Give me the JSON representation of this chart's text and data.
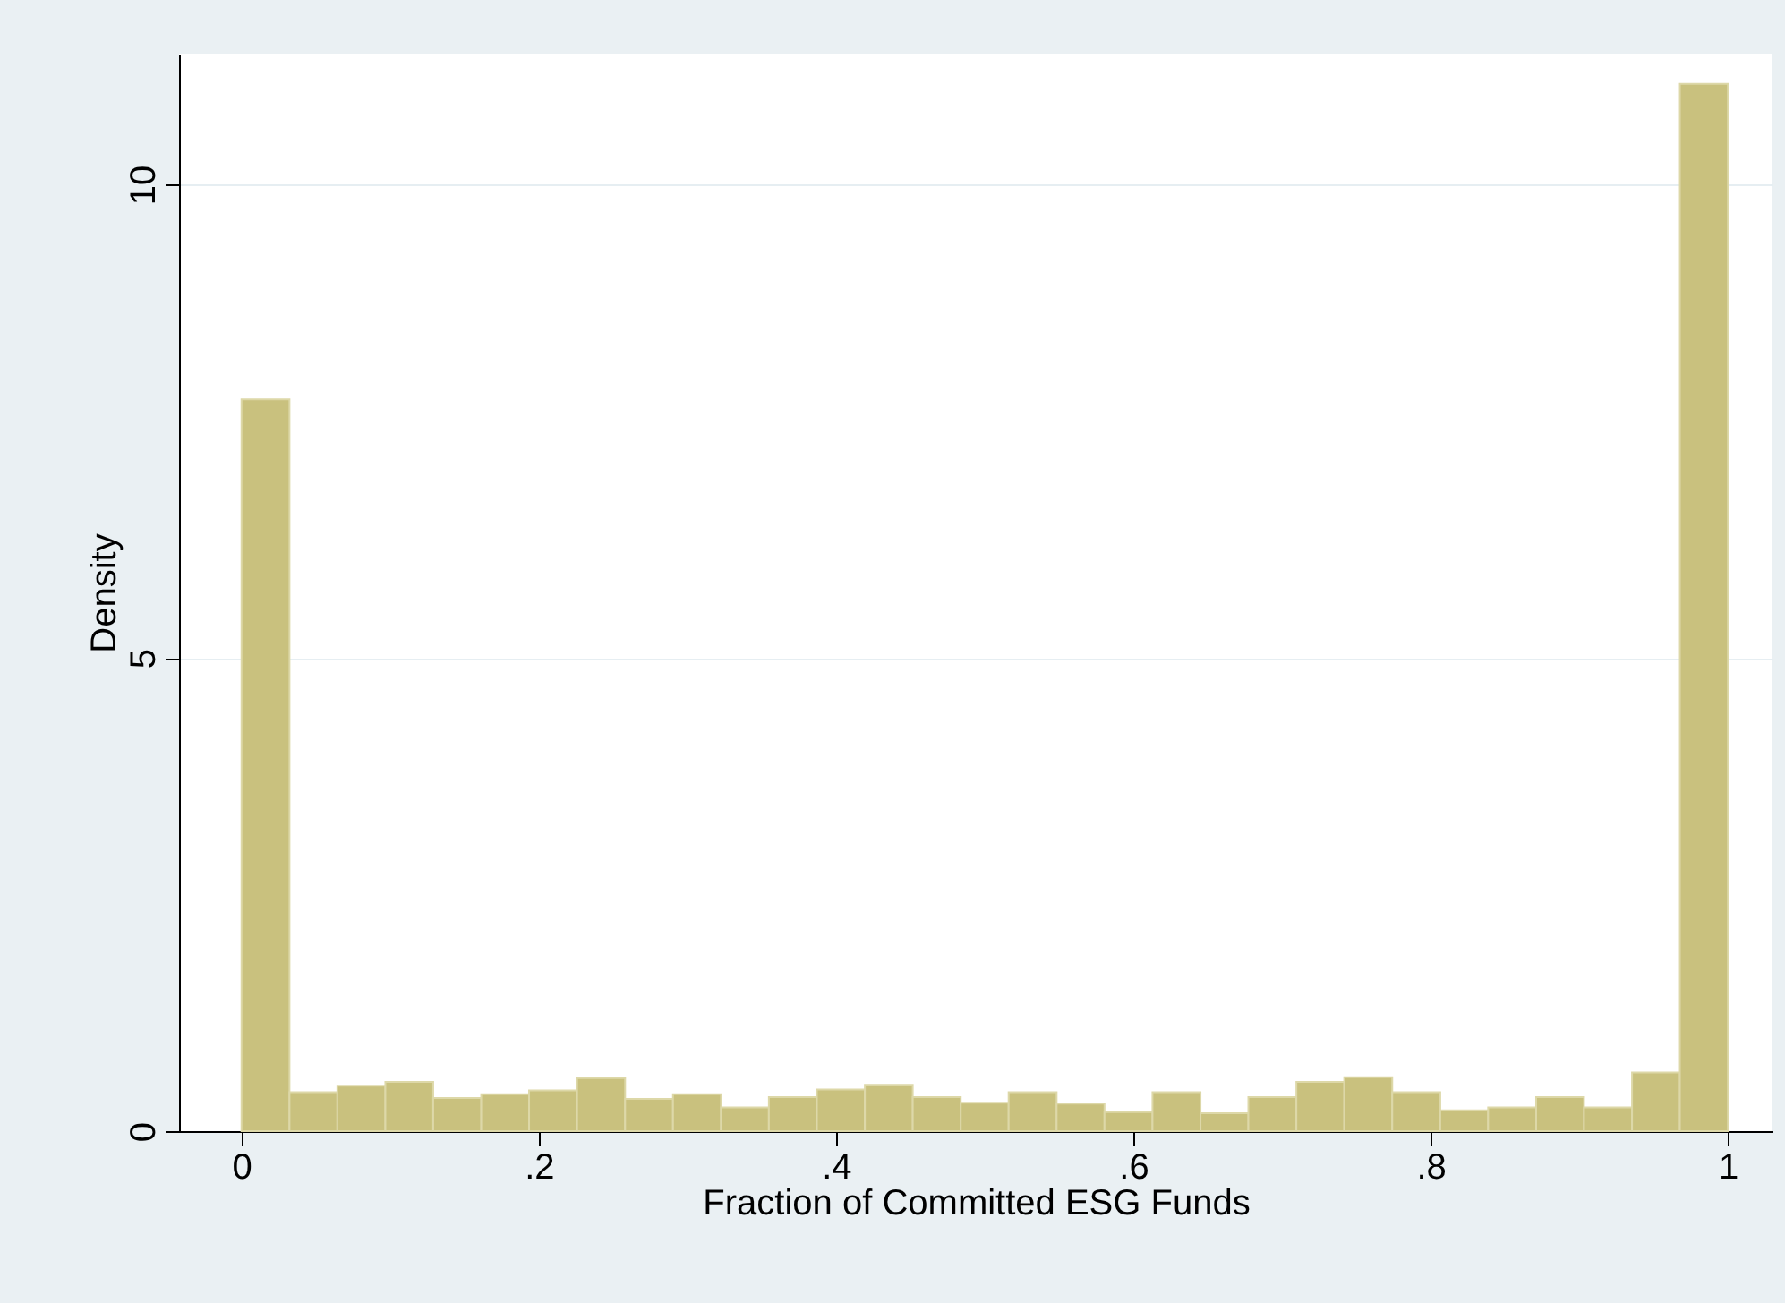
{
  "chart_data": {
    "type": "histogram",
    "xlabel": "Fraction of Committed ESG Funds",
    "ylabel": "Density",
    "bins": [
      0,
      0.0323,
      0.0645,
      0.0968,
      0.129,
      0.1613,
      0.1935,
      0.2258,
      0.2581,
      0.2903,
      0.3226,
      0.3548,
      0.3871,
      0.4194,
      0.4516,
      0.4839,
      0.5161,
      0.5484,
      0.5806,
      0.6129,
      0.6452,
      0.6774,
      0.7097,
      0.7419,
      0.7742,
      0.8065,
      0.8387,
      0.871,
      0.9032,
      0.9355,
      0.9677,
      1
    ],
    "values": [
      7.73,
      0.41,
      0.48,
      0.52,
      0.35,
      0.39,
      0.43,
      0.56,
      0.34,
      0.39,
      0.25,
      0.36,
      0.44,
      0.49,
      0.36,
      0.3,
      0.41,
      0.29,
      0.2,
      0.41,
      0.19,
      0.36,
      0.52,
      0.57,
      0.41,
      0.22,
      0.25,
      0.36,
      0.25,
      0.62,
      11.06
    ],
    "color": "#c9c17e",
    "xlim": [
      -0.042,
      1.03
    ],
    "ylim": [
      0,
      11.38
    ],
    "xticks": [
      0,
      {
        "value": 0.2,
        "label": ".2"
      },
      {
        "value": 0.4,
        "label": ".4"
      },
      {
        "value": 0.6,
        "label": ".6"
      },
      {
        "value": 0.8,
        "label": ".8"
      },
      1
    ],
    "yticks": [
      0,
      5,
      10
    ],
    "grid": "y"
  }
}
